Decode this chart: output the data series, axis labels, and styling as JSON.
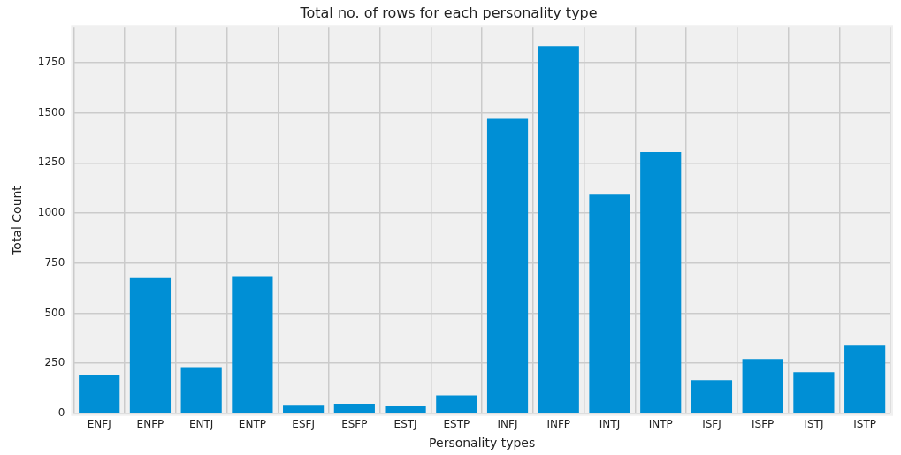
{
  "chart_data": {
    "type": "bar",
    "title": "Total no. of rows for each personality type",
    "xlabel": "Personality types",
    "ylabel": "Total Count",
    "categories": [
      "ENFJ",
      "ENFP",
      "ENTJ",
      "ENTP",
      "ESFJ",
      "ESFP",
      "ESTJ",
      "ESTP",
      "INFJ",
      "INFP",
      "INTJ",
      "INTP",
      "ISFJ",
      "ISFP",
      "ISTJ",
      "ISTP"
    ],
    "values": [
      190,
      675,
      231,
      685,
      42,
      48,
      39,
      89,
      1470,
      1832,
      1091,
      1304,
      166,
      271,
      205,
      337
    ],
    "color": "#008fd5",
    "ylim": [
      0,
      1925
    ],
    "yticks": [
      0,
      250,
      500,
      750,
      1000,
      1250,
      1500,
      1750
    ],
    "grid": true
  }
}
